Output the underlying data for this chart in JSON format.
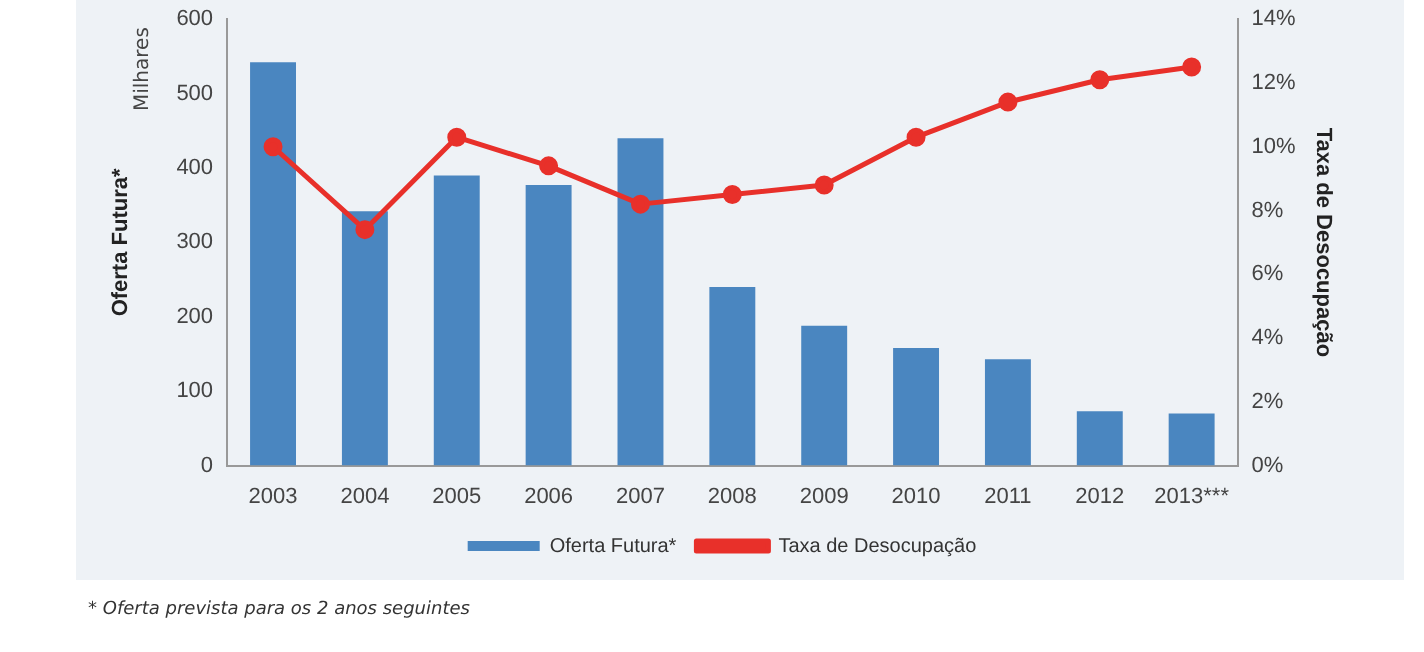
{
  "chart_data": {
    "type": "bar",
    "categories": [
      "2003",
      "2004",
      "2005",
      "2006",
      "2007",
      "2008",
      "2009",
      "2010",
      "2011",
      "2012",
      "2013***"
    ],
    "series": [
      {
        "name": "Oferta Futura*",
        "color": "#4a86c0",
        "values": [
          542,
          342,
          390,
          377,
          440,
          240,
          188,
          158,
          143,
          73,
          70
        ]
      },
      {
        "name": "Taxa de Desocupação",
        "type": "line",
        "axis": "y2",
        "color": "#e8302a",
        "marker": "circle",
        "values": [
          10.0,
          7.4,
          10.3,
          9.4,
          8.2,
          8.5,
          8.8,
          10.3,
          11.4,
          12.1,
          12.5
        ]
      }
    ],
    "ylabel": "Oferta Futura*",
    "y2label": "Taxa de Desocupação",
    "ylim": [
      0,
      600
    ],
    "yticks": [
      0,
      100,
      200,
      300,
      400,
      500,
      600
    ],
    "y2lim": [
      0,
      14
    ],
    "y2ticks": [
      {
        "value": 0,
        "label": "0%"
      },
      {
        "value": 2,
        "label": "2%"
      },
      {
        "value": 4,
        "label": "4%"
      },
      {
        "value": 6,
        "label": "6%"
      },
      {
        "value": 8,
        "label": "8%"
      },
      {
        "value": 10,
        "label": "10%"
      },
      {
        "value": 12,
        "label": "12%"
      },
      {
        "value": 14,
        "label": "14%"
      }
    ],
    "grid": false,
    "legend": "bottom",
    "annotations": [
      "Milhares",
      "* Oferta prevista para os 2 anos seguintes"
    ]
  }
}
